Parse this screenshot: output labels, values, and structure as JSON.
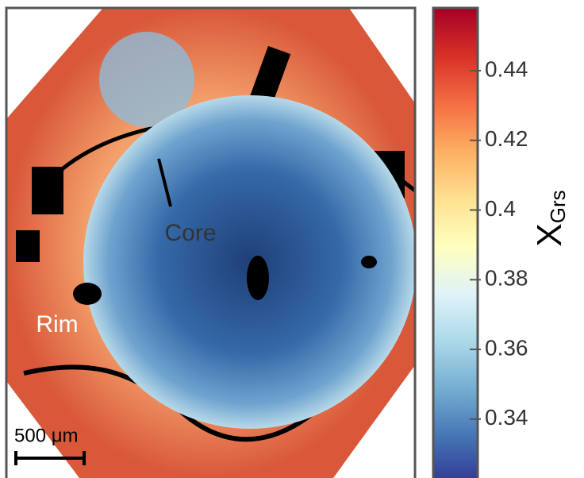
{
  "chart_data": {
    "type": "map-colorbar",
    "annotations": [
      "Core",
      "Rim"
    ],
    "scale_bar": "500 μm",
    "colorbar_label": "X",
    "colorbar_label_subscript": "Grs",
    "colormap": "RdYlBu_r",
    "clim": [
      0.324,
      0.458
    ],
    "cticks": [
      0.34,
      0.36,
      0.38,
      0.4,
      0.42,
      0.44
    ]
  }
}
